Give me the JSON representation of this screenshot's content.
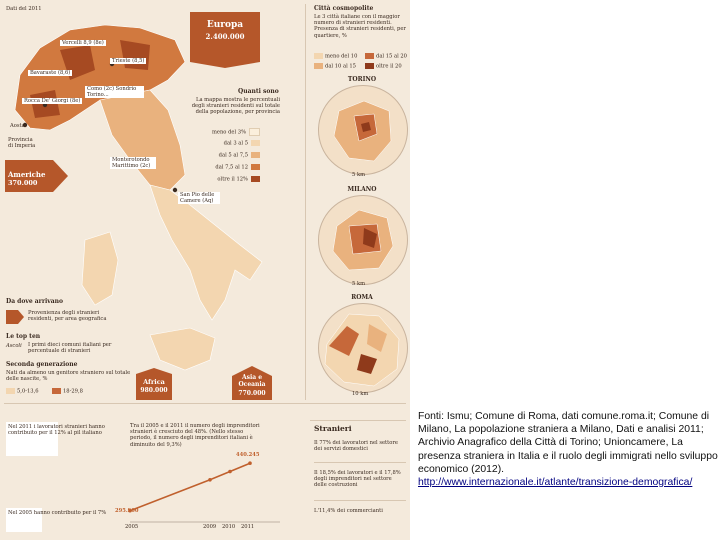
{
  "infographic": {
    "corner_label": "Dati del 2011",
    "europa": {
      "name": "Europa",
      "value": "2.400.000"
    },
    "americhe": {
      "name": "Americhe",
      "value": "370.000"
    },
    "africa": {
      "name": "Africa",
      "value": "980.000"
    },
    "asia": {
      "name": "Asia e Oceania",
      "value": "770.000"
    },
    "map_labels": [
      "Vercelli 8,9 (8e)",
      "Trieste (8,5)",
      "Bavaraste (8,6)",
      "Como (2c) Sondrio Torino...",
      "Rocca De' Giorgi (8e)",
      "Aosta",
      "Provincia di Imperia",
      "Monterotondo Marittimo (2c)",
      "San Pio delle Camere (Aq)"
    ],
    "quanti": {
      "title": "Quanti sono",
      "desc": "La mappa mostra le percentuali degli stranieri residenti sul totale della popolazione, per provincia",
      "legend": [
        "meno del 3%",
        "dal 3 al 5",
        "dal 5 al 7,5",
        "dal 7,5 al 12",
        "oltre il 12%"
      ],
      "colors": [
        "#fbefdc",
        "#f3d6b0",
        "#e9b27e",
        "#d1793f",
        "#a64a22"
      ]
    },
    "provenienza": {
      "title": "Da dove arrivano",
      "desc": "Provenienza degli stranieri residenti, per area geografica",
      "topten_title": "Le top ten",
      "topten_desc": "I primi dieci comuni italiani per percentuale di stranieri",
      "topten_example": "Ascoli",
      "seconda_title": "Seconda generazione",
      "seconda_desc": "Nati da almeno un genitore straniero sul totale delle nascite, %",
      "seconda_ranges": [
        "5,0-13,6",
        "18-29,8"
      ]
    },
    "citta": {
      "title": "Città cosmopolite",
      "desc": "Le 3 città italiane con il maggior numero di stranieri residenti. Presenza di stranieri residenti, per quartiere, %",
      "legend": [
        "meno del 10",
        "dal 10 al 15",
        "dal 15 al 20",
        "oltre il 20"
      ],
      "colors": [
        "#f3d6b0",
        "#e9b27e",
        "#c6683a",
        "#8f3a1b"
      ],
      "names": [
        "TORINO",
        "MILANO",
        "ROMA"
      ],
      "scales": [
        "5 km",
        "5 km",
        "10 km"
      ]
    },
    "lavoratori": {
      "text1": "Nel 2011 i lavoratori stranieri hanno contribuito per il 12% al pil italiano",
      "text2": "Nel 2005 hanno contribuito per il 7%",
      "impr_text": "Tra il 2005 e il 2011 il numero degli imprenditori stranieri è cresciuto del 48%. (Nello stesso periodo, il numero degli imprenditori italiani è diminuito del 9,3%)",
      "value_start": "295.900",
      "value_end": "440.245",
      "years": [
        "2005",
        "2009",
        "2010",
        "2011"
      ]
    },
    "stranieri": {
      "title": "Stranieri",
      "line1": "Il 77% dei lavoratori nel settore dei servizi domestici",
      "line2": "Il 18,5% dei lavoratori e il 17,8% degli imprenditori nel settore delle costruzioni",
      "line3": "L'11,4% dei commercianti"
    }
  },
  "chart_data": {
    "type": "line",
    "x": [
      "2005",
      "2009",
      "2010",
      "2011"
    ],
    "series": [
      {
        "values": [
          295900,
          390000,
          415000,
          440245
        ]
      }
    ]
  },
  "source": {
    "text": "Fonti: Ismu; Comune di Roma, dati comune.roma.it; Comune di Milano, La popolazione straniera a Milano, Dati e analisi 2011; Archivio Anagrafico della Città di Torino; Unioncamere, La presenza straniera in Italia e il ruolo degli immigrati nello sviluppo economico (2012).",
    "link": "http://www.internazionale.it/atlante/transizione-demografica/"
  }
}
